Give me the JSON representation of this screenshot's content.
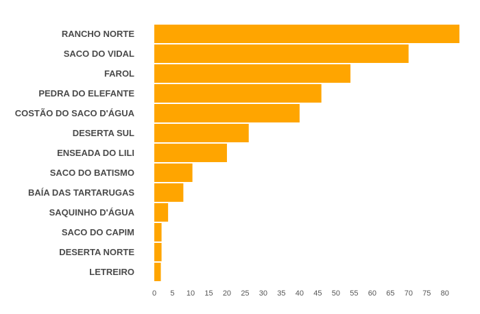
{
  "chart_data": {
    "type": "bar",
    "orientation": "horizontal",
    "categories": [
      "RANCHO NORTE",
      "SACO DO VIDAL",
      "FAROL",
      "PEDRA DO ELEFANTE",
      "COSTÃO DO SACO D'ÁGUA",
      "DESERTA SUL",
      "ENSEADA DO LILI",
      "SACO DO BATISMO",
      "BAÍA DAS TARTARUGAS",
      "SAQUINHO D'ÁGUA",
      "SACO DO CAPIM",
      "DESERTA NORTE",
      "LETREIRO"
    ],
    "values": [
      84,
      70,
      54,
      46,
      40,
      26,
      20,
      10.5,
      8,
      3.8,
      2,
      2,
      1.8
    ],
    "xlim": [
      0,
      84
    ],
    "xticks": [
      "0",
      "5",
      "10",
      "15",
      "20",
      "25",
      "30",
      "35",
      "40",
      "45",
      "50",
      "55",
      "60",
      "65",
      "70",
      "75",
      "80"
    ],
    "title": "",
    "xlabel": "",
    "ylabel": "",
    "grid": false,
    "legend": "none",
    "bar_color": "#FFA500"
  }
}
